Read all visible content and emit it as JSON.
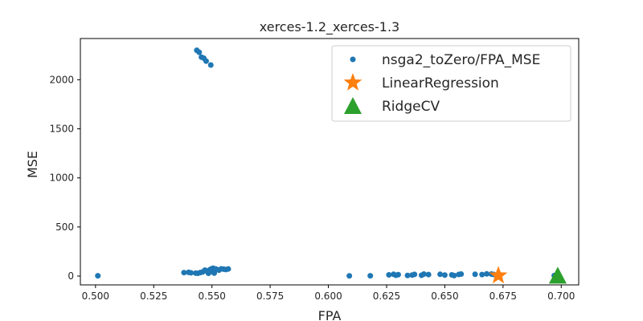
{
  "chart_data": {
    "type": "scatter",
    "title": "xerces-1.2_xerces-1.3",
    "xlabel": "FPA",
    "ylabel": "MSE",
    "xlim": [
      0.4935,
      0.7075
    ],
    "ylim": [
      -90,
      2420
    ],
    "xticks": [
      "0.500",
      "0.525",
      "0.550",
      "0.575",
      "0.600",
      "0.625",
      "0.650",
      "0.675",
      "0.700"
    ],
    "yticks": [
      "0",
      "500",
      "1000",
      "1500",
      "2000"
    ],
    "grid": false,
    "legend_position": "upper-right",
    "series": [
      {
        "name": "nsga2_toZero/FPA_MSE",
        "color": "#1f77b4",
        "marker": "circle",
        "x": [
          0.501,
          0.5435,
          0.5445,
          0.5455,
          0.5465,
          0.5475,
          0.5495,
          0.538,
          0.54,
          0.541,
          0.543,
          0.544,
          0.545,
          0.546,
          0.547,
          0.548,
          0.549,
          0.5495,
          0.55,
          0.5505,
          0.551,
          0.5515,
          0.552,
          0.553,
          0.554,
          0.555,
          0.556,
          0.557,
          0.55,
          0.551,
          0.5485,
          0.547,
          0.609,
          0.618,
          0.626,
          0.628,
          0.63,
          0.629,
          0.634,
          0.636,
          0.637,
          0.64,
          0.641,
          0.643,
          0.648,
          0.65,
          0.653,
          0.654,
          0.656,
          0.657,
          0.663,
          0.666,
          0.668,
          0.67,
          0.671,
          0.697
        ],
        "y": [
          3,
          2300,
          2280,
          2230,
          2220,
          2190,
          2150,
          35,
          38,
          33,
          30,
          28,
          36,
          42,
          55,
          50,
          62,
          70,
          75,
          80,
          65,
          72,
          68,
          60,
          74,
          70,
          66,
          72,
          45,
          30,
          28,
          60,
          2,
          3,
          12,
          18,
          14,
          8,
          6,
          10,
          17,
          8,
          20,
          15,
          18,
          10,
          12,
          5,
          16,
          20,
          18,
          15,
          22,
          20,
          16,
          5
        ]
      },
      {
        "name": "LinearRegression",
        "color": "#ff7f0e",
        "marker": "star",
        "x": [
          0.673
        ],
        "y": [
          5
        ]
      },
      {
        "name": "RidgeCV",
        "color": "#2ca02c",
        "marker": "triangle",
        "x": [
          0.6985
        ],
        "y": [
          5
        ]
      }
    ]
  }
}
